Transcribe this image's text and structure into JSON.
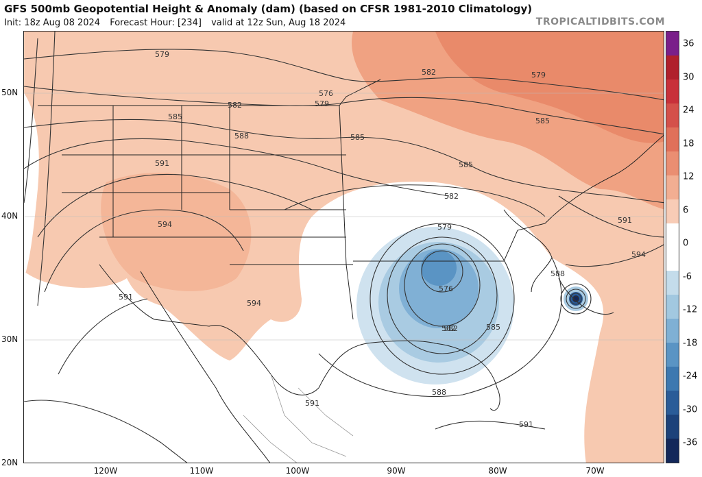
{
  "header": {
    "title": "GFS 500mb Geopotential Height & Anomaly (dam) (based on CFSR 1981-2010 Climatology)",
    "init": "Init: 18z Aug 08 2024",
    "forecast_hour": "Forecast Hour: [234]",
    "valid": "valid at 12z Sun, Aug 18 2024",
    "brand": "TROPICALTIDBITS.COM"
  },
  "map": {
    "lat_labels": [
      "50N",
      "40N",
      "30N",
      "20N"
    ],
    "lon_labels": [
      "120W",
      "110W",
      "100W",
      "90W",
      "80W",
      "70W"
    ],
    "contour_labels": [
      {
        "text": "579"
      },
      {
        "text": "576"
      },
      {
        "text": "579"
      },
      {
        "text": "582"
      },
      {
        "text": "585"
      },
      {
        "text": "588"
      },
      {
        "text": "591"
      },
      {
        "text": "594"
      },
      {
        "text": "582"
      },
      {
        "text": "585"
      },
      {
        "text": "585"
      },
      {
        "text": "582"
      },
      {
        "text": "579"
      },
      {
        "text": "585"
      },
      {
        "text": "582"
      },
      {
        "text": "579"
      },
      {
        "text": "576"
      },
      {
        "text": "582"
      },
      {
        "text": "585"
      },
      {
        "text": "588"
      },
      {
        "text": "588"
      },
      {
        "text": "591"
      },
      {
        "text": "594"
      },
      {
        "text": "591"
      },
      {
        "text": "594"
      },
      {
        "text": "591"
      },
      {
        "text": "591"
      }
    ]
  },
  "colorbar": {
    "labels": [
      "36",
      "30",
      "24",
      "18",
      "12",
      "6",
      "0",
      "-6",
      "-12",
      "-18",
      "-24",
      "-30",
      "-36"
    ],
    "colors": [
      "#7a1f8a",
      "#b0202c",
      "#c8303a",
      "#d4504a",
      "#e0705a",
      "#ea8e72",
      "#f2ae92",
      "#f8ccb6",
      "#ffffff",
      "#ffffff",
      "#c4dceb",
      "#a2c8e0",
      "#7fb0d4",
      "#5a94c4",
      "#3d78b0",
      "#2a5c98",
      "#1c427a",
      "#13285a"
    ]
  }
}
